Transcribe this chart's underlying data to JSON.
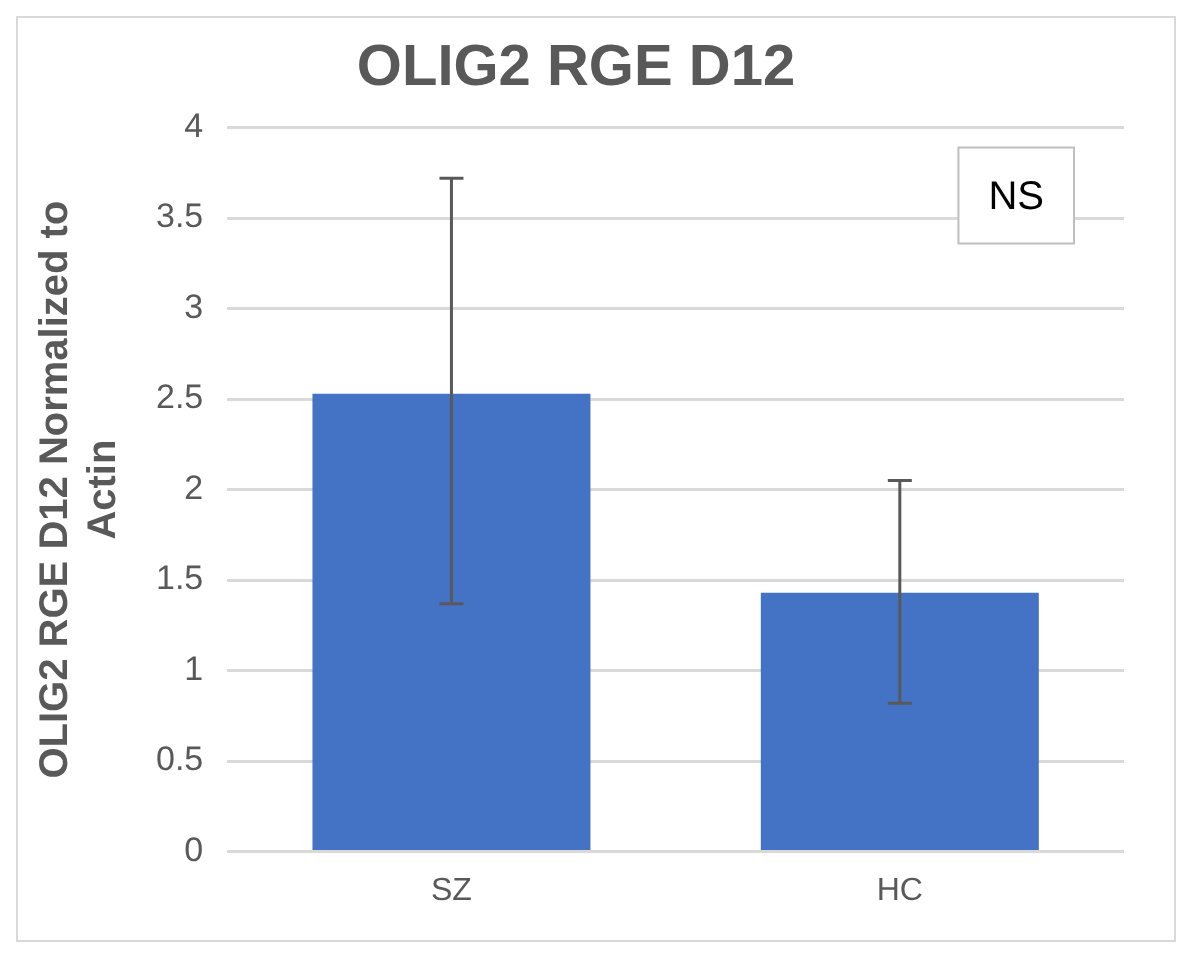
{
  "chart_data": {
    "type": "bar",
    "title": "OLIG2 RGE D12",
    "ylabel": "OLIG2 RGE D12 Normalized to Actin",
    "categories": [
      "SZ",
      "HC"
    ],
    "values": [
      2.53,
      1.43
    ],
    "errors": [
      [
        1.37,
        3.72
      ],
      [
        0.82,
        2.05
      ]
    ],
    "color": "#4472c4",
    "ylim": [
      0,
      4
    ],
    "yticks": [
      0,
      0.5,
      1,
      1.5,
      2,
      2.5,
      3,
      3.5,
      4
    ],
    "grid": "y",
    "legend": false,
    "annotations": [
      "NS"
    ]
  }
}
